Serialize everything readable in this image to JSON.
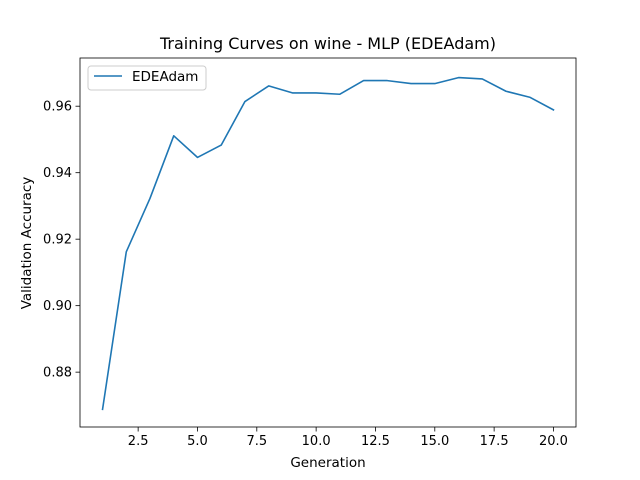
{
  "chart_data": {
    "type": "line",
    "title": "Training Curves on wine - MLP (EDEAdam)",
    "xlabel": "Generation",
    "ylabel": "Validation Accuracy",
    "xlim": [
      0.05,
      20.95
    ],
    "ylim": [
      0.8635,
      0.9745
    ],
    "xticks": [
      2.5,
      5.0,
      7.5,
      10.0,
      12.5,
      15.0,
      17.5,
      20.0
    ],
    "xtick_labels": [
      "2.5",
      "5.0",
      "7.5",
      "10.0",
      "12.5",
      "15.0",
      "17.5",
      "20.0"
    ],
    "yticks": [
      0.88,
      0.9,
      0.92,
      0.94,
      0.96
    ],
    "ytick_labels": [
      "0.88",
      "0.90",
      "0.92",
      "0.94",
      "0.96"
    ],
    "grid": false,
    "legend_position": "upper-left",
    "series": [
      {
        "name": "EDEAdam",
        "color": "#1f77b4",
        "x": [
          1,
          2,
          3,
          4,
          5,
          6,
          7,
          8,
          9,
          10,
          11,
          12,
          13,
          14,
          15,
          16,
          17,
          18,
          19,
          20
        ],
        "y": [
          0.8688,
          0.9162,
          0.9323,
          0.9511,
          0.9446,
          0.9483,
          0.9614,
          0.9661,
          0.964,
          0.964,
          0.9636,
          0.9677,
          0.9677,
          0.9668,
          0.9668,
          0.9686,
          0.9682,
          0.9645,
          0.9627,
          0.9589
        ]
      }
    ]
  }
}
